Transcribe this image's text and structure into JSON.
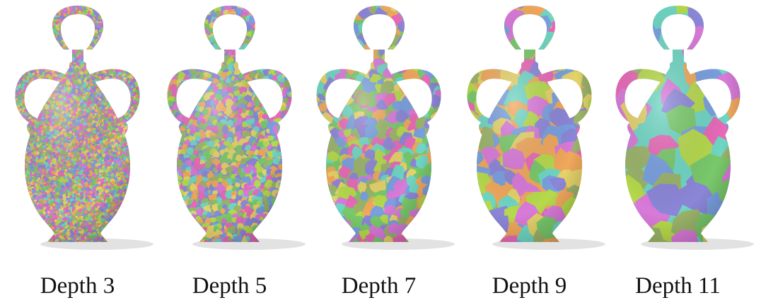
{
  "panels": [
    {
      "label": "Depth 3",
      "patch_scale": 1
    },
    {
      "label": "Depth 5",
      "patch_scale": 2
    },
    {
      "label": "Depth 7",
      "patch_scale": 3.5
    },
    {
      "label": "Depth 9",
      "patch_scale": 6
    },
    {
      "label": "Depth 11",
      "patch_scale": 10
    }
  ],
  "colors": {
    "palette": [
      "#e86ab8",
      "#8c86d8",
      "#79c96b",
      "#f0a85c",
      "#6fd6c4",
      "#b6d94c",
      "#7aa0e0",
      "#d97ad9",
      "#9bb46a",
      "#e5d26a"
    ],
    "shadow": "#e2e2e2"
  }
}
